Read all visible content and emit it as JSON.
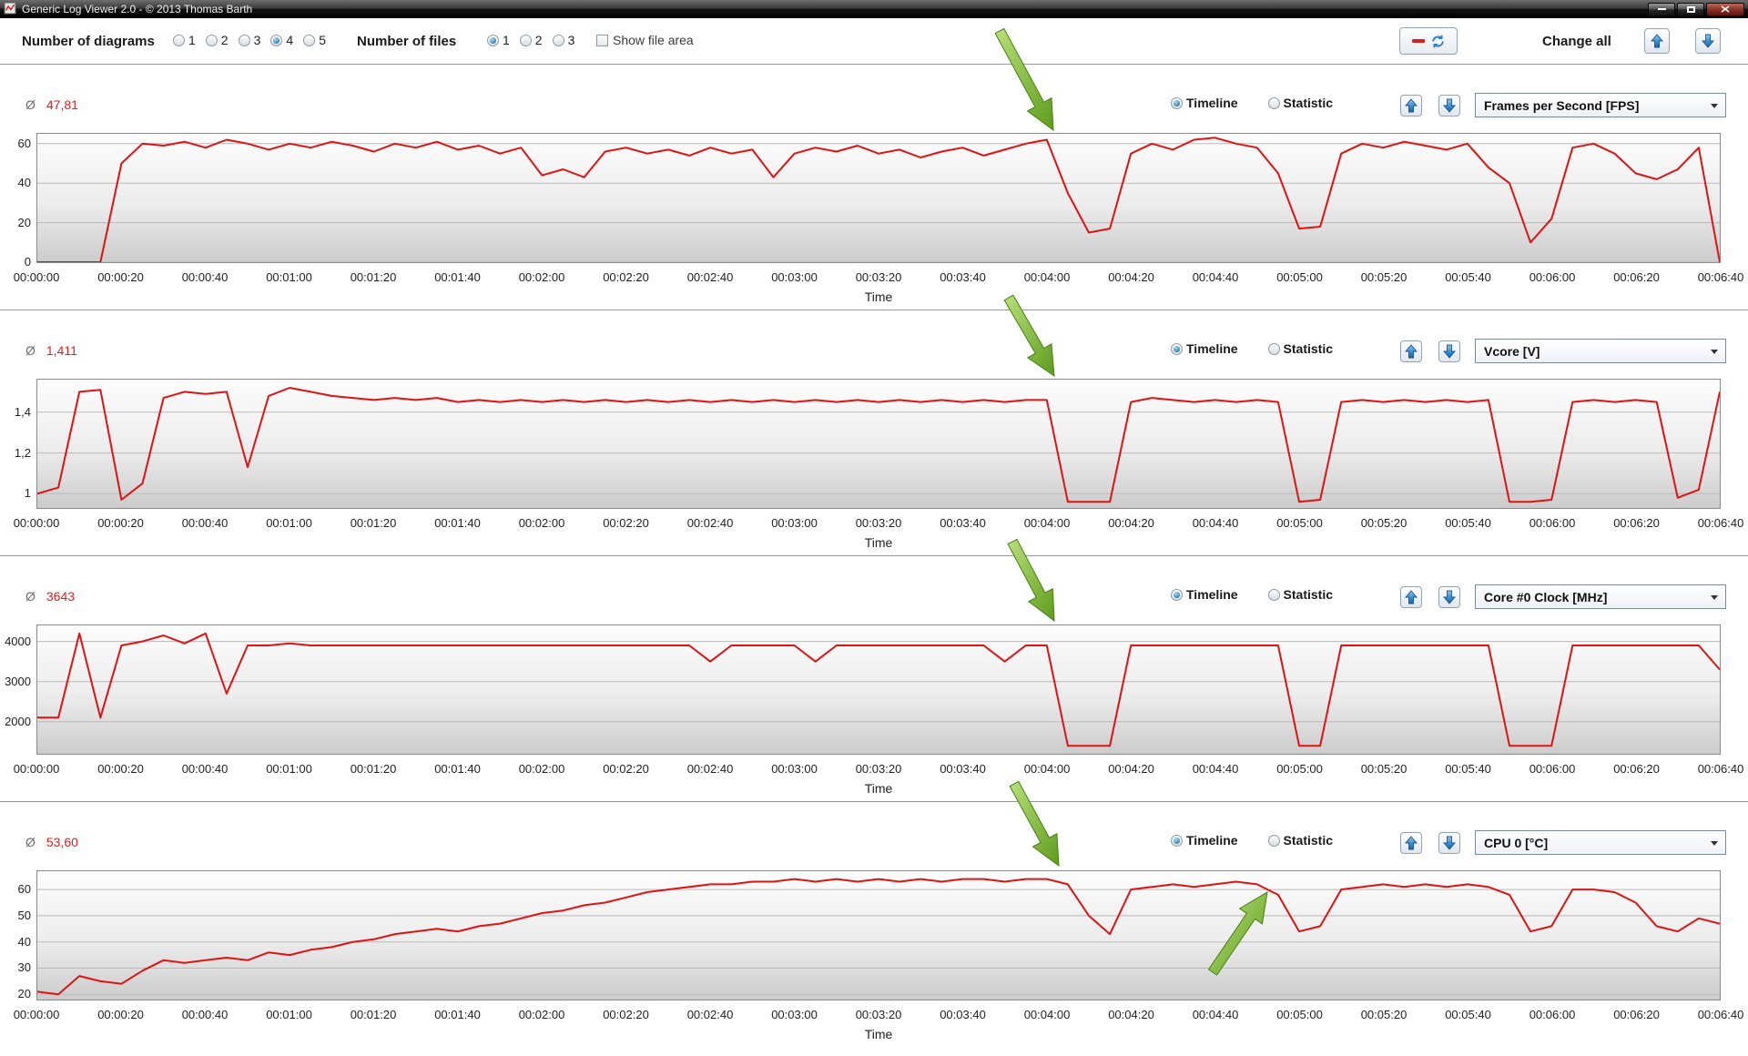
{
  "window": {
    "title": "Generic Log Viewer 2.0 - © 2013 Thomas Barth",
    "buttons": [
      "minimize",
      "maximize",
      "close"
    ]
  },
  "toolbar": {
    "diagrams_label": "Number of diagrams",
    "diagram_options": [
      "1",
      "2",
      "3",
      "4",
      "5"
    ],
    "diagrams_selected": "4",
    "files_label": "Number of files",
    "file_options": [
      "1",
      "2",
      "3"
    ],
    "files_selected": "1",
    "show_file_area_label": "Show file area",
    "show_file_area_checked": false,
    "change_all_label": "Change all"
  },
  "labels": {
    "avg_symbol": "Ø",
    "timeline": "Timeline",
    "statistic": "Statistic",
    "time": "Time"
  },
  "panels": [
    {
      "avg": "47,81",
      "metric": "Frames per Second [FPS]",
      "mode": "Timeline"
    },
    {
      "avg": "1,411",
      "metric": "Vcore [V]",
      "mode": "Timeline"
    },
    {
      "avg": "3643",
      "metric": "Core #0 Clock [MHz]",
      "mode": "Timeline"
    },
    {
      "avg": "53,60",
      "metric": "CPU 0 [°C]",
      "mode": "Timeline"
    }
  ],
  "chart_data": [
    {
      "type": "line",
      "title": "Frames per Second [FPS]",
      "color": "#e01212",
      "average": 47.81,
      "x_start": 0,
      "x_step": 5,
      "x_end": 400,
      "ylim": [
        0,
        65
      ],
      "y_ticks": [
        0,
        20,
        40,
        60
      ],
      "y_tick_labels": [
        "0",
        "20",
        "40",
        "60"
      ],
      "x_ticks": [
        "00:00:00",
        "00:00:20",
        "00:00:40",
        "00:01:00",
        "00:01:20",
        "00:01:40",
        "00:02:00",
        "00:02:20",
        "00:02:40",
        "00:03:00",
        "00:03:20",
        "00:03:40",
        "00:04:00",
        "00:04:20",
        "00:04:40",
        "00:05:00",
        "00:05:20",
        "00:05:40",
        "00:06:00",
        "00:06:20",
        "00:06:40"
      ],
      "values": [
        0,
        0,
        0,
        0,
        50,
        60,
        59,
        61,
        58,
        62,
        60,
        57,
        60,
        58,
        61,
        59,
        56,
        60,
        58,
        61,
        57,
        59,
        55,
        58,
        44,
        47,
        43,
        56,
        58,
        55,
        57,
        54,
        58,
        55,
        57,
        43,
        55,
        58,
        56,
        59,
        55,
        57,
        53,
        56,
        58,
        54,
        57,
        60,
        62,
        35,
        15,
        17,
        55,
        60,
        57,
        62,
        63,
        60,
        58,
        45,
        17,
        18,
        55,
        60,
        58,
        61,
        59,
        57,
        60,
        48,
        40,
        10,
        22,
        58,
        60,
        55,
        45,
        42,
        47,
        58,
        0
      ]
    },
    {
      "type": "line",
      "title": "Vcore [V]",
      "color": "#e01212",
      "average": 1.411,
      "x_start": 0,
      "x_step": 5,
      "x_end": 400,
      "ylim": [
        0.93,
        1.56
      ],
      "y_ticks": [
        1,
        1.2,
        1.4
      ],
      "y_tick_labels": [
        "1",
        "1,2",
        "1,4"
      ],
      "x_ticks": [
        "00:00:00",
        "00:00:20",
        "00:00:40",
        "00:01:00",
        "00:01:20",
        "00:01:40",
        "00:02:00",
        "00:02:20",
        "00:02:40",
        "00:03:00",
        "00:03:20",
        "00:03:40",
        "00:04:00",
        "00:04:20",
        "00:04:40",
        "00:05:00",
        "00:05:20",
        "00:05:40",
        "00:06:00",
        "00:06:20",
        "00:06:40"
      ],
      "values": [
        1.0,
        1.03,
        1.5,
        1.51,
        0.97,
        1.05,
        1.47,
        1.5,
        1.49,
        1.5,
        1.13,
        1.48,
        1.52,
        1.5,
        1.48,
        1.47,
        1.46,
        1.47,
        1.46,
        1.47,
        1.45,
        1.46,
        1.45,
        1.46,
        1.45,
        1.46,
        1.45,
        1.46,
        1.45,
        1.46,
        1.45,
        1.46,
        1.45,
        1.46,
        1.45,
        1.46,
        1.45,
        1.46,
        1.45,
        1.46,
        1.45,
        1.46,
        1.45,
        1.46,
        1.45,
        1.46,
        1.45,
        1.46,
        1.46,
        0.96,
        0.96,
        0.96,
        1.45,
        1.47,
        1.46,
        1.45,
        1.46,
        1.45,
        1.46,
        1.45,
        0.96,
        0.97,
        1.45,
        1.46,
        1.45,
        1.46,
        1.45,
        1.46,
        1.45,
        1.46,
        0.96,
        0.96,
        0.97,
        1.45,
        1.46,
        1.45,
        1.46,
        1.45,
        0.98,
        1.02,
        1.5
      ]
    },
    {
      "type": "line",
      "title": "Core #0 Clock [MHz]",
      "color": "#e01212",
      "average": 3643,
      "x_start": 0,
      "x_step": 5,
      "x_end": 400,
      "ylim": [
        1200,
        4400
      ],
      "y_ticks": [
        2000,
        3000,
        4000
      ],
      "y_tick_labels": [
        "2000",
        "3000",
        "4000"
      ],
      "x_ticks": [
        "00:00:00",
        "00:00:20",
        "00:00:40",
        "00:01:00",
        "00:01:20",
        "00:01:40",
        "00:02:00",
        "00:02:20",
        "00:02:40",
        "00:03:00",
        "00:03:20",
        "00:03:40",
        "00:04:00",
        "00:04:20",
        "00:04:40",
        "00:05:00",
        "00:05:20",
        "00:05:40",
        "00:06:00",
        "00:06:20",
        "00:06:40"
      ],
      "values": [
        2100,
        2100,
        4200,
        2100,
        3900,
        4000,
        4150,
        3950,
        4200,
        2700,
        3900,
        3900,
        3950,
        3900,
        3900,
        3900,
        3900,
        3900,
        3900,
        3900,
        3900,
        3900,
        3900,
        3900,
        3900,
        3900,
        3900,
        3900,
        3900,
        3900,
        3900,
        3900,
        3500,
        3900,
        3900,
        3900,
        3900,
        3500,
        3900,
        3900,
        3900,
        3900,
        3900,
        3900,
        3900,
        3900,
        3500,
        3900,
        3900,
        1400,
        1400,
        1400,
        3900,
        3900,
        3900,
        3900,
        3900,
        3900,
        3900,
        3900,
        1400,
        1400,
        3900,
        3900,
        3900,
        3900,
        3900,
        3900,
        3900,
        3900,
        1400,
        1400,
        1400,
        3900,
        3900,
        3900,
        3900,
        3900,
        3900,
        3900,
        3300
      ]
    },
    {
      "type": "line",
      "title": "CPU 0 [°C]",
      "color": "#e01212",
      "average": 53.6,
      "x_start": 0,
      "x_step": 5,
      "x_end": 400,
      "ylim": [
        18,
        67
      ],
      "y_ticks": [
        20,
        30,
        40,
        50,
        60
      ],
      "y_tick_labels": [
        "20",
        "30",
        "40",
        "50",
        "60"
      ],
      "x_ticks": [
        "00:00:00",
        "00:00:20",
        "00:00:40",
        "00:01:00",
        "00:01:20",
        "00:01:40",
        "00:02:00",
        "00:02:20",
        "00:02:40",
        "00:03:00",
        "00:03:20",
        "00:03:40",
        "00:04:00",
        "00:04:20",
        "00:04:40",
        "00:05:00",
        "00:05:20",
        "00:05:40",
        "00:06:00",
        "00:06:20",
        "00:06:40"
      ],
      "values": [
        21,
        20,
        27,
        25,
        24,
        29,
        33,
        32,
        33,
        34,
        33,
        36,
        35,
        37,
        38,
        40,
        41,
        43,
        44,
        45,
        44,
        46,
        47,
        49,
        51,
        52,
        54,
        55,
        57,
        59,
        60,
        61,
        62,
        62,
        63,
        63,
        64,
        63,
        64,
        63,
        64,
        63,
        64,
        63,
        64,
        64,
        63,
        64,
        64,
        62,
        50,
        43,
        60,
        61,
        62,
        61,
        62,
        63,
        62,
        58,
        44,
        46,
        60,
        61,
        62,
        61,
        62,
        61,
        62,
        61,
        58,
        44,
        46,
        60,
        60,
        59,
        55,
        46,
        44,
        49,
        47
      ]
    }
  ],
  "annotations": {
    "arrow_color_light": "#b7e07a",
    "arrow_color_dark": "#5f9c1d",
    "arrows": [
      {
        "from": [
          1098,
          34
        ],
        "to": [
          1157,
          143
        ]
      },
      {
        "from": [
          1108,
          327
        ],
        "to": [
          1158,
          413
        ]
      },
      {
        "from": [
          1112,
          595
        ],
        "to": [
          1158,
          682
        ]
      },
      {
        "from": [
          1114,
          861
        ],
        "to": [
          1163,
          951
        ]
      },
      {
        "from": [
          1332,
          1068
        ],
        "to": [
          1392,
          980
        ]
      }
    ]
  }
}
